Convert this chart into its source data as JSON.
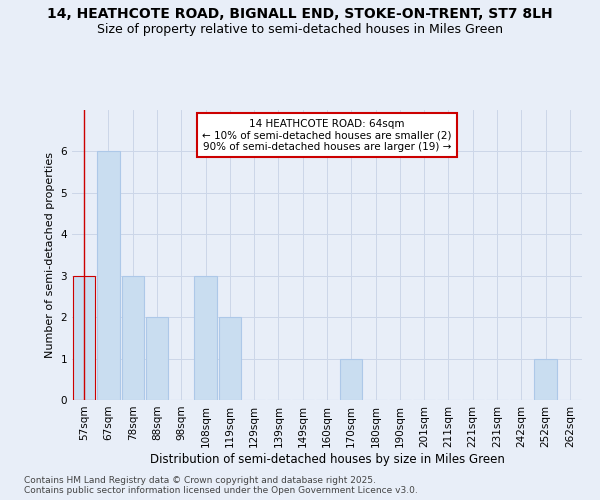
{
  "title": "14, HEATHCOTE ROAD, BIGNALL END, STOKE-ON-TRENT, ST7 8LH",
  "subtitle": "Size of property relative to semi-detached houses in Miles Green",
  "xlabel": "Distribution of semi-detached houses by size in Miles Green",
  "ylabel": "Number of semi-detached properties",
  "categories": [
    "57sqm",
    "67sqm",
    "78sqm",
    "88sqm",
    "98sqm",
    "108sqm",
    "119sqm",
    "129sqm",
    "139sqm",
    "149sqm",
    "160sqm",
    "170sqm",
    "180sqm",
    "190sqm",
    "201sqm",
    "211sqm",
    "221sqm",
    "231sqm",
    "242sqm",
    "252sqm",
    "262sqm"
  ],
  "values": [
    3,
    6,
    3,
    2,
    0,
    3,
    2,
    0,
    0,
    0,
    0,
    1,
    0,
    0,
    0,
    0,
    0,
    0,
    0,
    1,
    0
  ],
  "bar_color": "#c9ddf0",
  "bar_edge_color": "#adc8e8",
  "highlight_index": 0,
  "highlight_edge_color": "#cc0000",
  "annotation_text": "14 HEATHCOTE ROAD: 64sqm\n← 10% of semi-detached houses are smaller (2)\n90% of semi-detached houses are larger (19) →",
  "annotation_box_color": "#ffffff",
  "annotation_box_edge_color": "#cc0000",
  "ylim": [
    0,
    7
  ],
  "yticks": [
    0,
    1,
    2,
    3,
    4,
    5,
    6,
    7
  ],
  "grid_color": "#ccd6e8",
  "background_color": "#e8eef8",
  "plot_bg_color": "#e8eef8",
  "footer_line1": "Contains HM Land Registry data © Crown copyright and database right 2025.",
  "footer_line2": "Contains public sector information licensed under the Open Government Licence v3.0.",
  "title_fontsize": 10,
  "subtitle_fontsize": 9,
  "xlabel_fontsize": 8.5,
  "ylabel_fontsize": 8,
  "tick_fontsize": 7.5,
  "annotation_fontsize": 7.5,
  "footer_fontsize": 6.5
}
